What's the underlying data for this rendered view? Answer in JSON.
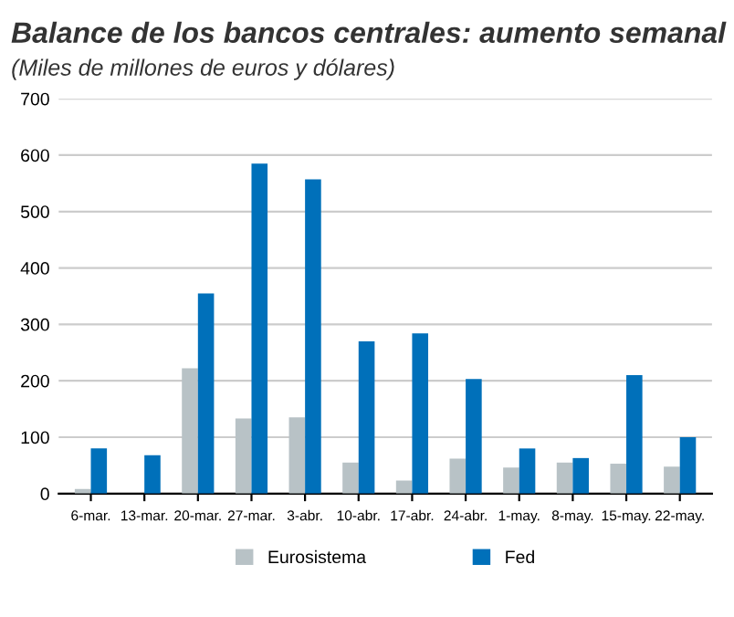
{
  "chart_data": {
    "type": "bar",
    "title": "Balance de los bancos centrales: aumento semanal",
    "subtitle": "(Miles de millones de euros y dólares)",
    "categories": [
      "6-mar.",
      "13-mar.",
      "20-mar.",
      "27-mar.",
      "3-abr.",
      "10-abr.",
      "17-abr.",
      "24-abr.",
      "1-may.",
      "8-may.",
      "15-may.",
      "22-may."
    ],
    "series": [
      {
        "name": "Eurosistema",
        "color": "#b8c2c6",
        "values": [
          8,
          null,
          222,
          133,
          135,
          55,
          23,
          62,
          46,
          55,
          53,
          48
        ]
      },
      {
        "name": "Fed",
        "color": "#0070ba",
        "values": [
          80,
          68,
          355,
          585,
          557,
          270,
          284,
          203,
          80,
          63,
          210,
          100
        ]
      }
    ],
    "ylim": [
      0,
      700
    ],
    "yticks": [
      0,
      100,
      200,
      300,
      400,
      500,
      600,
      700
    ],
    "grid": "y",
    "legend": "bottom"
  }
}
